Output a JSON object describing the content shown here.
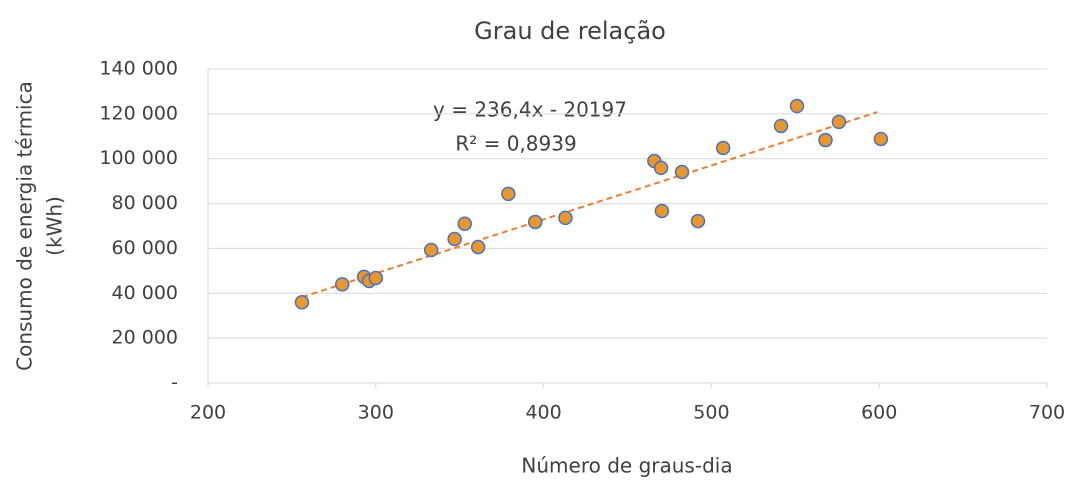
{
  "chart_data": {
    "type": "scatter",
    "title": "Grau de relação",
    "xlabel": "Número de graus-dia",
    "ylabel": [
      "Consumo de energia térmica",
      "(kWh)"
    ],
    "annotations": [
      "y = 236,4x - 20197",
      "R² = 0,8939"
    ],
    "xlim": [
      200,
      700
    ],
    "xticks": [
      200,
      300,
      400,
      500,
      600,
      700
    ],
    "ylim": [
      0,
      140000
    ],
    "yticks": [
      {
        "value": 0,
        "label": "-"
      },
      {
        "value": 20000,
        "label": "20 000"
      },
      {
        "value": 40000,
        "label": "40 000"
      },
      {
        "value": 60000,
        "label": "60 000"
      },
      {
        "value": 80000,
        "label": "80 000"
      },
      {
        "value": 100000,
        "label": "100 000"
      },
      {
        "value": 120000,
        "label": "120 000"
      },
      {
        "value": 140000,
        "label": "140 000"
      }
    ],
    "grid": true,
    "series": [
      {
        "color": "#e9962e",
        "edgecolor": "#4472c4",
        "x": [
          256,
          280,
          293,
          296,
          300,
          333,
          347,
          353,
          361,
          379,
          395,
          413,
          466,
          470,
          470.5,
          482.5,
          492,
          507,
          541.5,
          551,
          568,
          576,
          601
        ],
        "values": [
          36000,
          44000,
          47300,
          45500,
          46800,
          59300,
          64200,
          71000,
          60600,
          84300,
          71800,
          73600,
          99000,
          95900,
          76700,
          94100,
          72200,
          104800,
          114600,
          123500,
          108300,
          116400,
          108800
        ]
      }
    ],
    "trendline": {
      "color": "#ed7d31",
      "x": [
        256,
        599
      ],
      "values": [
        38300,
        120800
      ]
    }
  }
}
